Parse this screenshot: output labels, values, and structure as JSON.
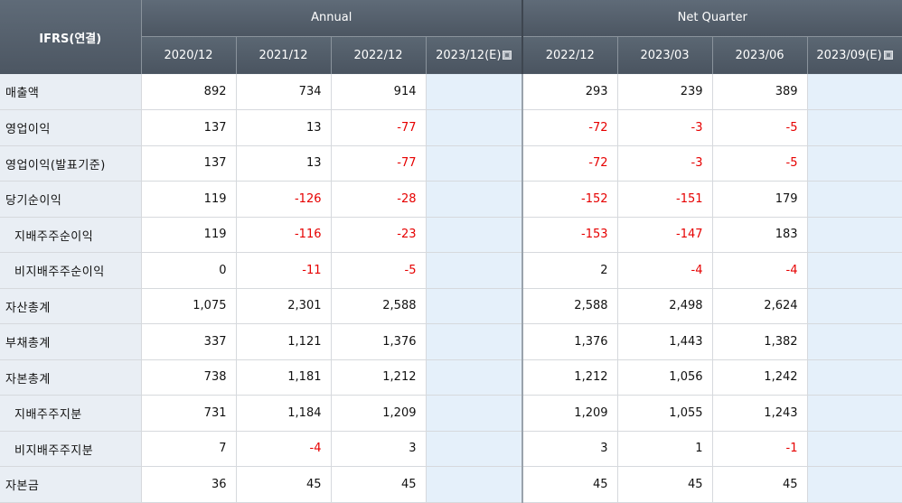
{
  "header": {
    "ifrs_label": "IFRS(연결)",
    "annual_label": "Annual",
    "quarter_label": "Net Quarter",
    "annual_periods": [
      "2020/12",
      "2021/12",
      "2022/12",
      "2023/12(E)"
    ],
    "quarter_periods": [
      "2022/12",
      "2023/03",
      "2023/06",
      "2023/09(E)"
    ]
  },
  "rows": [
    {
      "label": "매출액",
      "sub": false,
      "annual": [
        "892",
        "734",
        "914",
        ""
      ],
      "quarter": [
        "293",
        "239",
        "389",
        ""
      ]
    },
    {
      "label": "영업이익",
      "sub": false,
      "annual": [
        "137",
        "13",
        "-77",
        ""
      ],
      "quarter": [
        "-72",
        "-3",
        "-5",
        ""
      ]
    },
    {
      "label": "영업이익(발표기준)",
      "sub": false,
      "annual": [
        "137",
        "13",
        "-77",
        ""
      ],
      "quarter": [
        "-72",
        "-3",
        "-5",
        ""
      ]
    },
    {
      "label": "당기순이익",
      "sub": false,
      "annual": [
        "119",
        "-126",
        "-28",
        ""
      ],
      "quarter": [
        "-152",
        "-151",
        "179",
        ""
      ]
    },
    {
      "label": "지배주주순이익",
      "sub": true,
      "annual": [
        "119",
        "-116",
        "-23",
        ""
      ],
      "quarter": [
        "-153",
        "-147",
        "183",
        ""
      ]
    },
    {
      "label": "비지배주주순이익",
      "sub": true,
      "annual": [
        "0",
        "-11",
        "-5",
        ""
      ],
      "quarter": [
        "2",
        "-4",
        "-4",
        ""
      ]
    },
    {
      "label": "자산총계",
      "sub": false,
      "annual": [
        "1,075",
        "2,301",
        "2,588",
        ""
      ],
      "quarter": [
        "2,588",
        "2,498",
        "2,624",
        ""
      ]
    },
    {
      "label": "부채총계",
      "sub": false,
      "annual": [
        "337",
        "1,121",
        "1,376",
        ""
      ],
      "quarter": [
        "1,376",
        "1,443",
        "1,382",
        ""
      ]
    },
    {
      "label": "자본총계",
      "sub": false,
      "annual": [
        "738",
        "1,181",
        "1,212",
        ""
      ],
      "quarter": [
        "1,212",
        "1,056",
        "1,242",
        ""
      ]
    },
    {
      "label": "지배주주지분",
      "sub": true,
      "annual": [
        "731",
        "1,184",
        "1,209",
        ""
      ],
      "quarter": [
        "1,209",
        "1,055",
        "1,243",
        ""
      ]
    },
    {
      "label": "비지배주주지분",
      "sub": true,
      "annual": [
        "7",
        "-4",
        "3",
        ""
      ],
      "quarter": [
        "3",
        "1",
        "-1",
        ""
      ]
    },
    {
      "label": "자본금",
      "sub": false,
      "annual": [
        "36",
        "45",
        "45",
        ""
      ],
      "quarter": [
        "45",
        "45",
        "45",
        ""
      ]
    }
  ]
}
